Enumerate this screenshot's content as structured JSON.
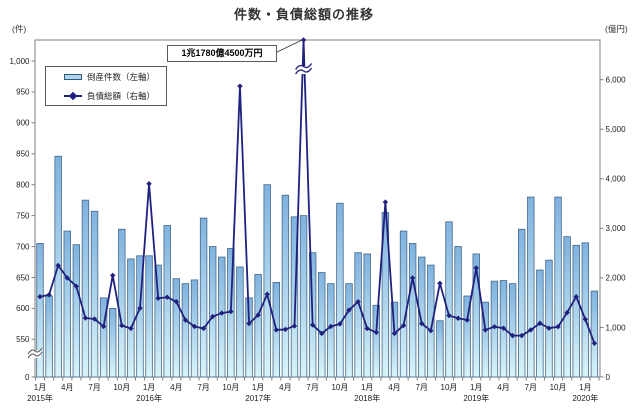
{
  "title": "件数・負債総額の推移",
  "left_unit_label": "(件)",
  "right_unit_label": "(億円)",
  "legend": {
    "bar_label": "倒産件数（左軸）",
    "line_label": "負債総額（右軸）"
  },
  "annotation": {
    "text": "1兆1780億4500万円",
    "target_category": "2017-06"
  },
  "colors": {
    "bar_fill_top": "#7fb2de",
    "bar_fill_bottom": "#d9f4f9",
    "bar_border": "#44688c",
    "line": "#20207e",
    "axis": "#7f7f7f",
    "text": "#222222"
  },
  "chart_data": {
    "type": "bar",
    "subtype": "combo-bar-line-dual-axis",
    "title": "件数・負債総額の推移",
    "categories": [
      "2015-01",
      "2015-02",
      "2015-03",
      "2015-04",
      "2015-05",
      "2015-06",
      "2015-07",
      "2015-08",
      "2015-09",
      "2015-10",
      "2015-11",
      "2015-12",
      "2016-01",
      "2016-02",
      "2016-03",
      "2016-04",
      "2016-05",
      "2016-06",
      "2016-07",
      "2016-08",
      "2016-09",
      "2016-10",
      "2016-11",
      "2016-12",
      "2017-01",
      "2017-02",
      "2017-03",
      "2017-04",
      "2017-05",
      "2017-06",
      "2017-07",
      "2017-08",
      "2017-09",
      "2017-10",
      "2017-11",
      "2017-12",
      "2018-01",
      "2018-02",
      "2018-03",
      "2018-04",
      "2018-05",
      "2018-06",
      "2018-07",
      "2018-08",
      "2018-09",
      "2018-10",
      "2018-11",
      "2018-12",
      "2019-01",
      "2019-02",
      "2019-03",
      "2019-04",
      "2019-05",
      "2019-06",
      "2019-07",
      "2019-08",
      "2019-09",
      "2019-10",
      "2019-11",
      "2019-12",
      "2020-01",
      "2020-02"
    ],
    "series": [
      {
        "name": "倒産件数（左軸）",
        "type": "bar",
        "axis": "left",
        "values": [
          705,
          620,
          846,
          725,
          703,
          775,
          757,
          617,
          600,
          728,
          680,
          685,
          685,
          670,
          734,
          648,
          640,
          646,
          746,
          700,
          683,
          697,
          667,
          617,
          655,
          800,
          642,
          783,
          748,
          750,
          690,
          658,
          640,
          770,
          640,
          690,
          688,
          605,
          755,
          610,
          725,
          705,
          683,
          670,
          580,
          740,
          700,
          620,
          688,
          610,
          644,
          645,
          640,
          728,
          780,
          662,
          678,
          780,
          716,
          702,
          706,
          628
        ]
      },
      {
        "name": "負債総額（右軸）",
        "type": "line",
        "axis": "right",
        "values": [
          1620,
          1660,
          2250,
          2000,
          1830,
          1190,
          1170,
          1020,
          2050,
          1040,
          980,
          1390,
          3900,
          1590,
          1610,
          1520,
          1150,
          1020,
          980,
          1220,
          1290,
          1320,
          5870,
          1080,
          1250,
          1670,
          950,
          960,
          1030,
          11780.45,
          1050,
          880,
          1020,
          1070,
          1350,
          1520,
          980,
          900,
          3530,
          880,
          1040,
          2000,
          1080,
          935,
          1890,
          1240,
          1185,
          1150,
          2200,
          950,
          1015,
          985,
          835,
          835,
          950,
          1085,
          985,
          1015,
          1300,
          1620,
          1165,
          680
        ]
      }
    ],
    "left_axis": {
      "label": "(件)",
      "ticks": [
        0,
        550,
        600,
        650,
        700,
        750,
        800,
        850,
        900,
        950,
        1000
      ],
      "break_between": [
        0,
        550
      ]
    },
    "right_axis": {
      "label": "(億円)",
      "ticks": [
        0,
        1000,
        2000,
        3000,
        4000,
        5000,
        6000
      ],
      "clip_above": 6500
    },
    "x_axis": {
      "month_tick_labels": [
        "1月",
        "4月",
        "7月",
        "10月"
      ],
      "year_labels": [
        "2015年",
        "2016年",
        "2017年",
        "2018年",
        "2019年",
        "2020年"
      ],
      "tick_every_months": 3
    },
    "legend_position": "upper-left-inside",
    "grid": false
  }
}
